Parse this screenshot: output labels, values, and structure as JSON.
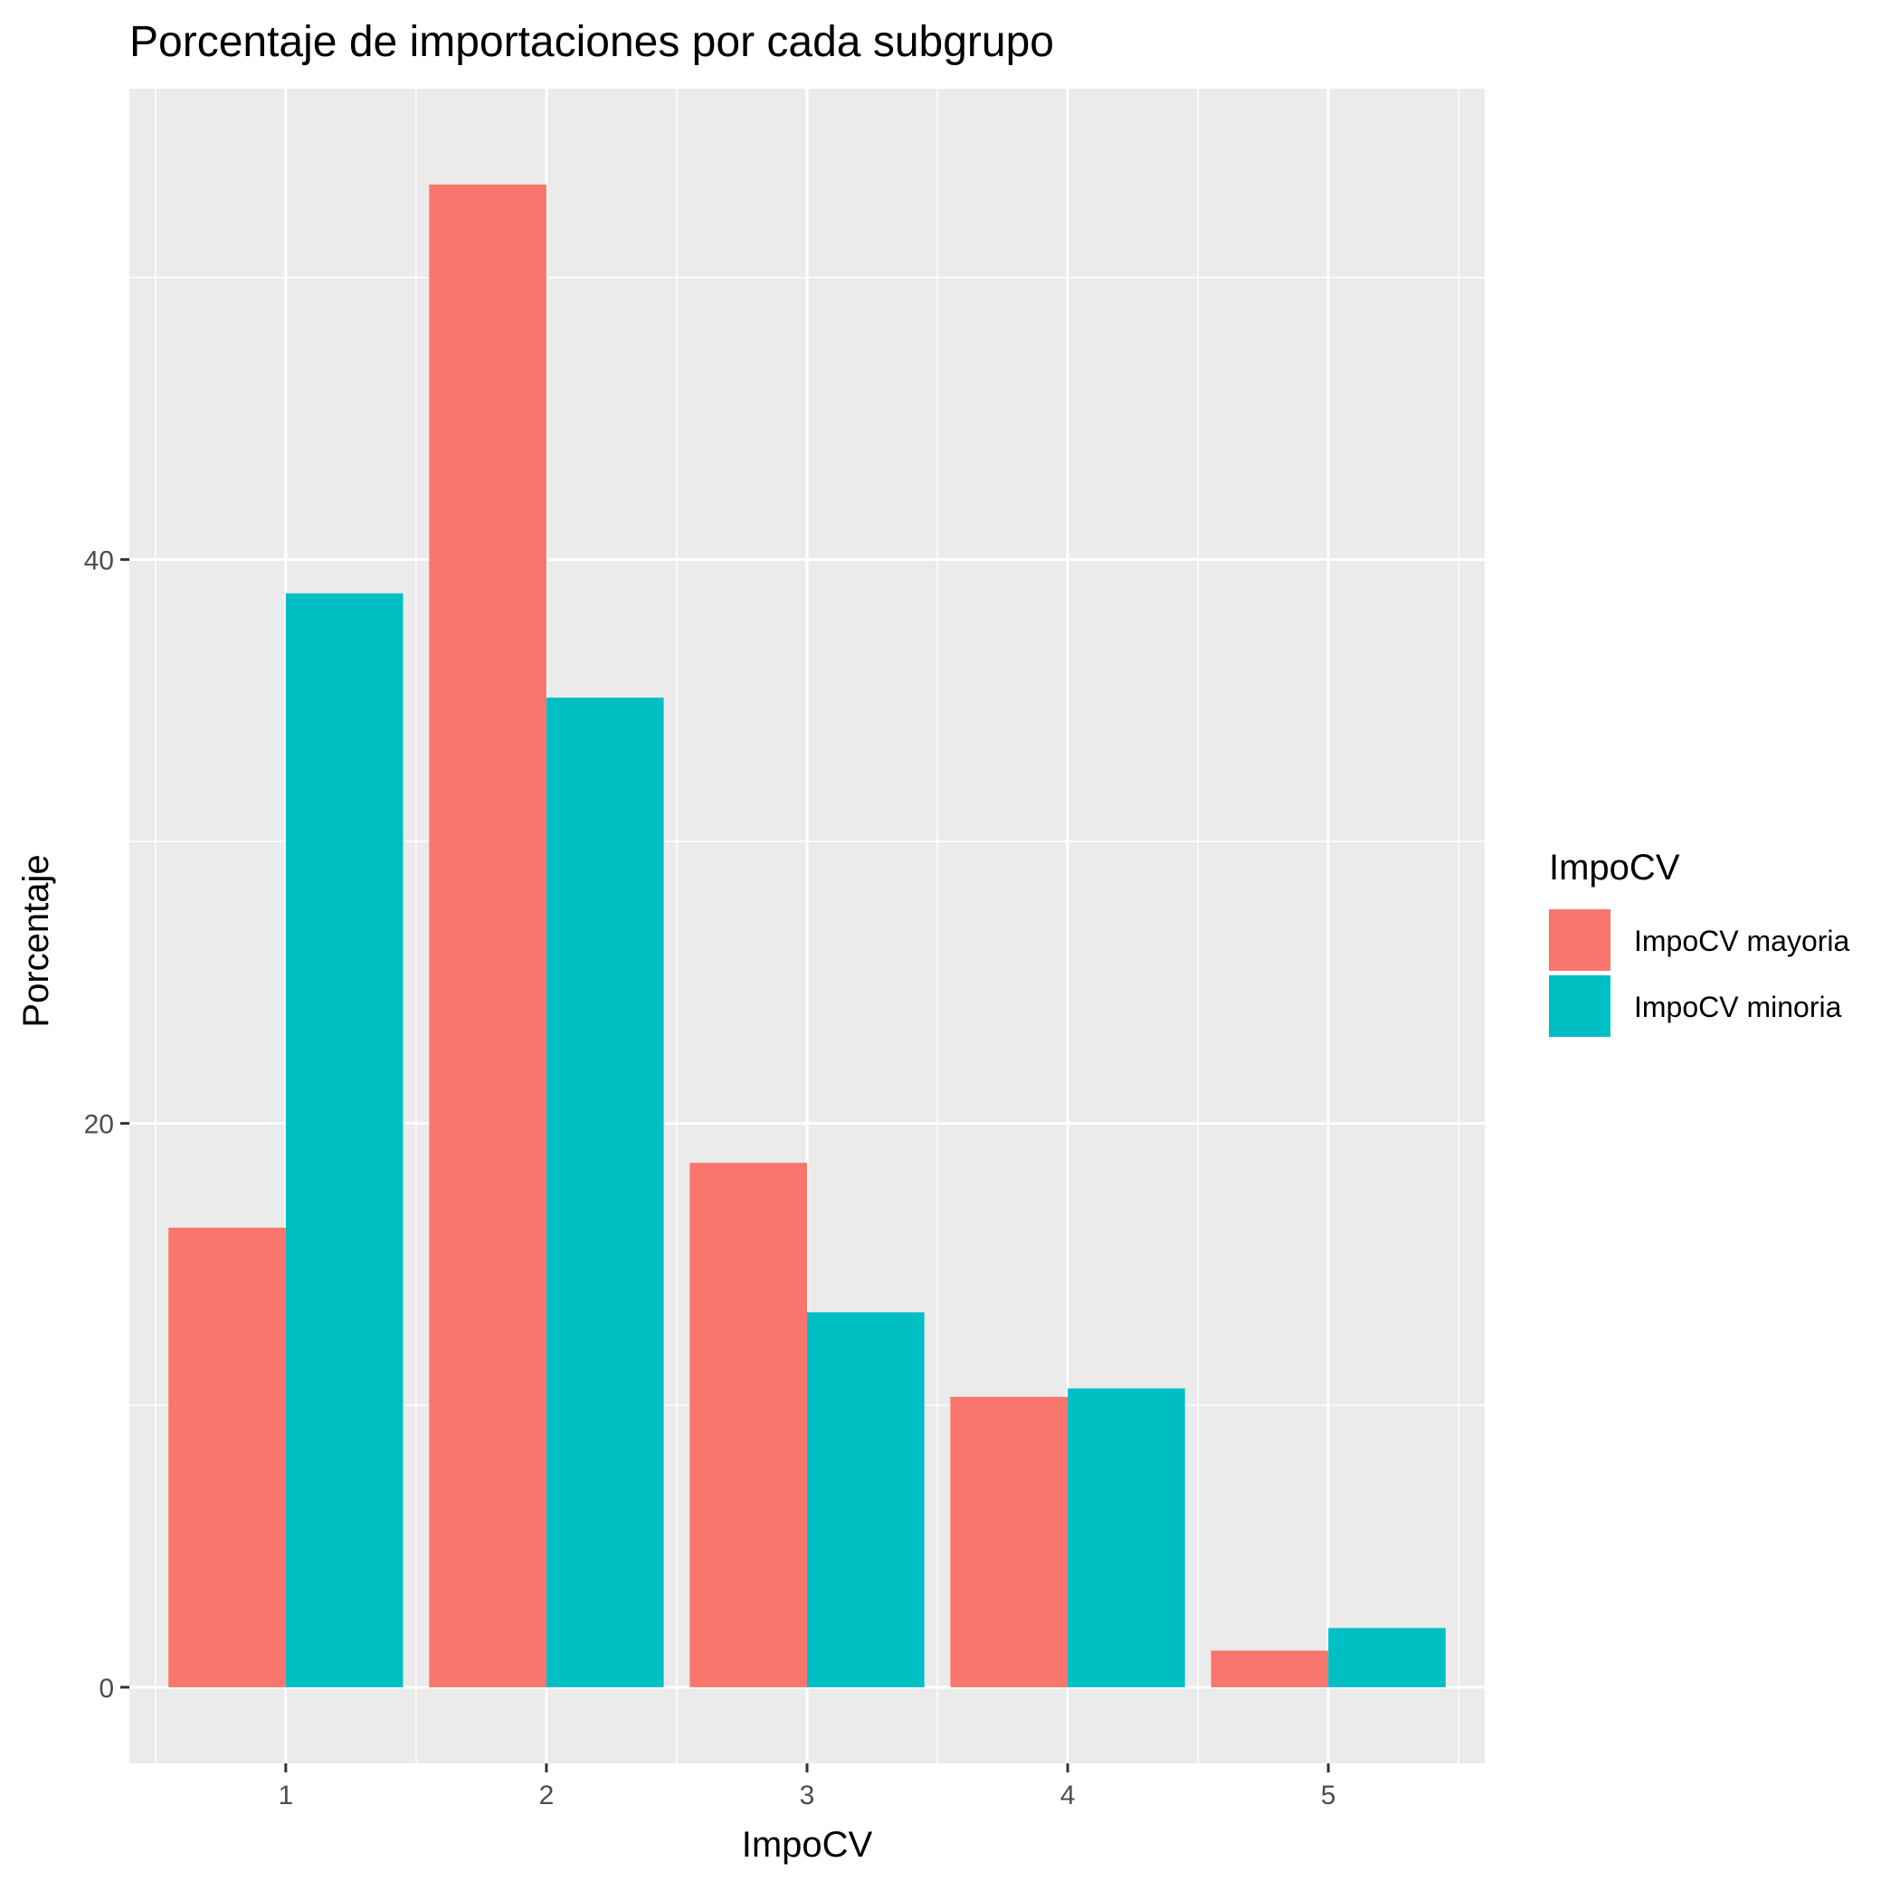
{
  "chart_data": {
    "type": "bar",
    "title": "Porcentaje de importaciones por cada subgrupo",
    "xlabel": "ImpoCV",
    "ylabel": "Porcentaje",
    "categories": [
      "1",
      "2",
      "3",
      "4",
      "5"
    ],
    "series": [
      {
        "name": "ImpoCV mayoria",
        "color": "#F8766D",
        "values": [
          16.3,
          53.3,
          18.6,
          10.3,
          1.3
        ]
      },
      {
        "name": "ImpoCV minoria",
        "color": "#00BFC4",
        "values": [
          38.8,
          35.1,
          13.3,
          10.6,
          2.1
        ]
      }
    ],
    "ylim": [
      -2.7,
      56.7
    ],
    "yticks": [
      0,
      20,
      40
    ],
    "grid": true,
    "legend": {
      "title": "ImpoCV",
      "position": "right"
    }
  }
}
